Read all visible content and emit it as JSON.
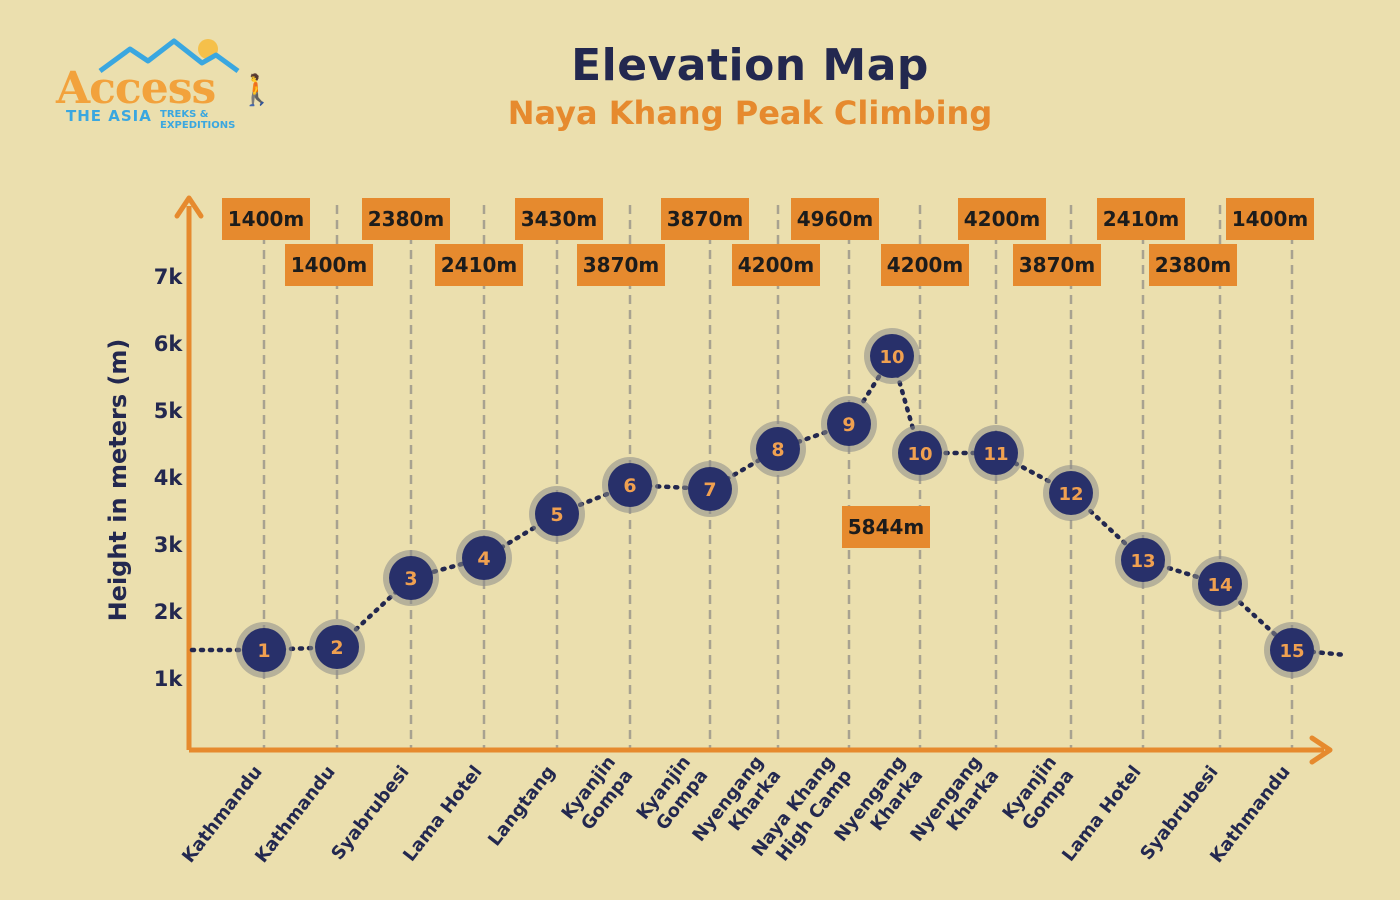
{
  "title": "Elevation Map",
  "subtitle": "Naya Khang Peak Climbing",
  "logo": {
    "word": "Access",
    "line1": "THE ASIA",
    "line2": "TREKS & EXPEDITIONS"
  },
  "colors": {
    "background": "#ebdfae",
    "navy": "#23284f",
    "orange": "#e68a2e",
    "dot": "#28306a"
  },
  "chart_data": {
    "type": "line",
    "title": "Elevation Map",
    "subtitle": "Naya Khang Peak Climbing",
    "ylabel": "Height in meters (m)",
    "xlabel": "",
    "ylim": [
      0,
      7500
    ],
    "yticks": [
      {
        "value": 1000,
        "label": "1k"
      },
      {
        "value": 2000,
        "label": "2k"
      },
      {
        "value": 3000,
        "label": "3k"
      },
      {
        "value": 4000,
        "label": "4k"
      },
      {
        "value": 5000,
        "label": "5k"
      },
      {
        "value": 6000,
        "label": "6k"
      },
      {
        "value": 7000,
        "label": "7k"
      }
    ],
    "grid": "vertical dashed",
    "days": [
      {
        "day": "1",
        "place": [
          "Kathmandu"
        ],
        "label": "1400m",
        "elevation": 1400
      },
      {
        "day": "2",
        "place": [
          "Kathmandu"
        ],
        "label": "1400m",
        "elevation": 1400
      },
      {
        "day": "3",
        "place": [
          "Syabrubesi"
        ],
        "label": "2380m",
        "elevation": 2380
      },
      {
        "day": "4",
        "place": [
          "Lama Hotel"
        ],
        "label": "2410m",
        "elevation": 2410
      },
      {
        "day": "5",
        "place": [
          "Langtang"
        ],
        "label": "3430m",
        "elevation": 3430
      },
      {
        "day": "6",
        "place": [
          "Kyanjin",
          "Gompa"
        ],
        "label": "3870m",
        "elevation": 3870
      },
      {
        "day": "7",
        "place": [
          "Kyanjin",
          "Gompa"
        ],
        "label": "3870m",
        "elevation": 3870
      },
      {
        "day": "8",
        "place": [
          "Nyengang",
          "Kharka"
        ],
        "label": "4200m",
        "elevation": 4200
      },
      {
        "day": "9",
        "place": [
          "Naya Khang",
          "High Camp"
        ],
        "label": "4960m",
        "elevation": 4960
      },
      {
        "day": "10",
        "place": [],
        "label": "5844m",
        "elevation": 5844
      },
      {
        "day": "10",
        "place": [
          "Nyengang",
          "Kharka"
        ],
        "label": "4200m",
        "elevation": 4200
      },
      {
        "day": "11",
        "place": [
          "Nyengang",
          "Kharka"
        ],
        "label": "4200m",
        "elevation": 4200
      },
      {
        "day": "12",
        "place": [
          "Kyanjin",
          "Gompa"
        ],
        "label": "3870m",
        "elevation": 3870
      },
      {
        "day": "13",
        "place": [
          "Lama Hotel"
        ],
        "label": "2410m",
        "elevation": 2410
      },
      {
        "day": "14",
        "place": [
          "Syabrubesi"
        ],
        "label": "2380m",
        "elevation": 2380
      },
      {
        "day": "15",
        "place": [
          "Kathmandu"
        ],
        "label": "1400m",
        "elevation": 1400
      }
    ]
  }
}
